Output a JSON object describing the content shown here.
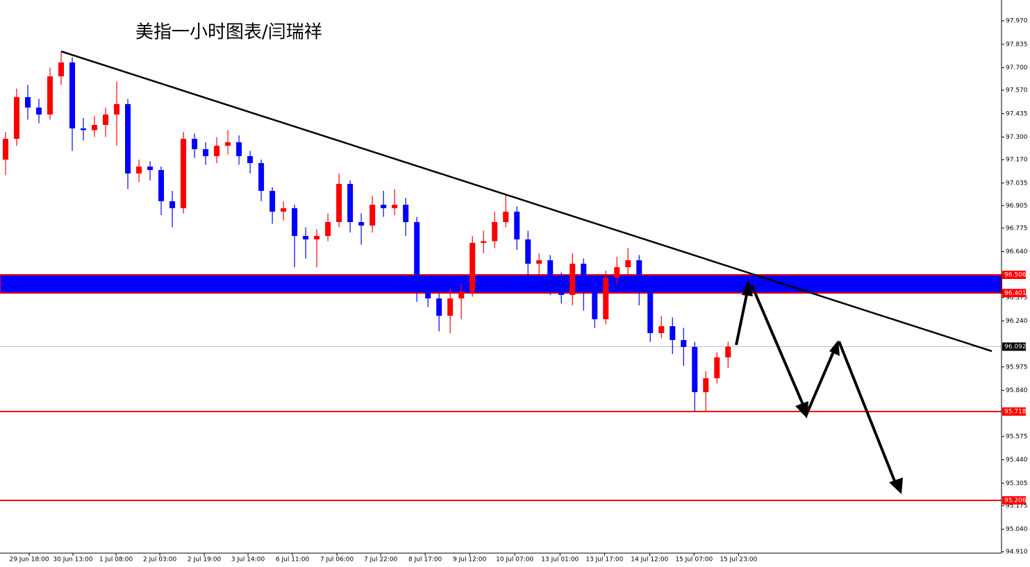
{
  "chart_data": {
    "type": "candlestick",
    "title": "美指一小时图表/闫瑞祥",
    "up_color": "#ff0000",
    "down_color": "#0000ff",
    "open": [
      97.17,
      97.29,
      97.53,
      97.47,
      97.43,
      97.65,
      97.73,
      97.35,
      97.34,
      97.37,
      97.43,
      97.49,
      97.09,
      97.13,
      97.11,
      96.93,
      96.89,
      97.29,
      97.23,
      97.19,
      97.25,
      97.27,
      97.19,
      97.15,
      96.99,
      96.87,
      96.89,
      96.73,
      96.71,
      96.73,
      96.81,
      97.03,
      96.81,
      96.79,
      96.91,
      96.89,
      96.91,
      96.81,
      96.41,
      96.37,
      96.27,
      96.37,
      96.41,
      96.69,
      96.7,
      96.81,
      96.87,
      96.71,
      96.57,
      96.59,
      96.49,
      96.39,
      96.57,
      96.41,
      96.25,
      96.49,
      96.55,
      96.59,
      96.41,
      96.17,
      96.21,
      96.13,
      96.09,
      95.83,
      95.91,
      96.03
    ],
    "high": [
      97.33,
      97.58,
      97.6,
      97.52,
      97.7,
      97.79,
      97.76,
      97.41,
      97.42,
      97.47,
      97.62,
      97.52,
      97.17,
      97.16,
      97.13,
      96.99,
      97.33,
      97.32,
      97.27,
      97.3,
      97.34,
      97.31,
      97.22,
      97.17,
      97.01,
      96.93,
      96.91,
      96.78,
      96.77,
      96.86,
      97.09,
      97.05,
      96.86,
      96.96,
      96.99,
      97.0,
      96.95,
      96.84,
      96.45,
      96.4,
      96.43,
      96.46,
      96.73,
      96.76,
      96.87,
      96.97,
      96.9,
      96.76,
      96.63,
      96.62,
      96.52,
      96.63,
      96.6,
      96.45,
      96.53,
      96.61,
      96.66,
      96.62,
      96.45,
      96.27,
      96.26,
      96.2,
      96.12,
      95.95,
      96.06,
      96.12
    ],
    "low": [
      97.08,
      97.25,
      97.4,
      97.38,
      97.4,
      97.6,
      97.22,
      97.28,
      97.3,
      97.3,
      97.25,
      97.0,
      97.04,
      97.05,
      96.85,
      96.78,
      96.86,
      97.18,
      97.14,
      97.15,
      97.2,
      97.14,
      97.09,
      96.93,
      96.8,
      96.82,
      96.55,
      96.6,
      96.55,
      96.7,
      96.78,
      96.75,
      96.68,
      96.75,
      96.84,
      96.85,
      96.73,
      96.35,
      96.32,
      96.18,
      96.17,
      96.25,
      96.38,
      96.63,
      96.66,
      96.78,
      96.65,
      96.5,
      96.51,
      96.39,
      96.34,
      96.33,
      96.3,
      96.2,
      96.22,
      96.45,
      96.5,
      96.33,
      96.12,
      96.14,
      96.05,
      95.98,
      95.72,
      95.72,
      95.88,
      95.97
    ],
    "close": [
      97.29,
      97.53,
      97.47,
      97.43,
      97.65,
      97.73,
      97.35,
      97.34,
      97.37,
      97.43,
      97.49,
      97.09,
      97.13,
      97.11,
      96.93,
      96.89,
      97.29,
      97.23,
      97.19,
      97.25,
      97.27,
      97.19,
      97.15,
      96.99,
      96.87,
      96.89,
      96.73,
      96.71,
      96.73,
      96.81,
      97.03,
      96.81,
      96.79,
      96.91,
      96.89,
      96.91,
      96.81,
      96.41,
      96.37,
      96.27,
      96.37,
      96.41,
      96.69,
      96.7,
      96.81,
      96.87,
      96.71,
      96.57,
      96.59,
      96.49,
      96.39,
      96.57,
      96.41,
      96.25,
      96.49,
      96.55,
      96.59,
      96.41,
      96.17,
      96.21,
      96.13,
      96.09,
      95.83,
      95.91,
      96.03,
      96.092
    ],
    "xlim": [
      -0.5,
      89.6
    ],
    "xticks": [
      {
        "value": 2.13,
        "label": "29 Jun 18:00"
      },
      {
        "value": 6.06,
        "label": "30 Jun 13:00"
      },
      {
        "value": 9.94,
        "label": "1 Jul 08:00"
      },
      {
        "value": 13.88,
        "label": "2 Jul 03:00"
      },
      {
        "value": 17.88,
        "label": "2 Jul 19:00"
      },
      {
        "value": 21.81,
        "label": "3 Jul 14:00"
      },
      {
        "value": 25.81,
        "label": "6 Jul 11:00"
      },
      {
        "value": 29.81,
        "label": "7 Jul 06:00"
      },
      {
        "value": 33.75,
        "label": "7 Jul 22:00"
      },
      {
        "value": 37.75,
        "label": "8 Jul 17:00"
      },
      {
        "value": 41.75,
        "label": "9 Jul 12:00"
      },
      {
        "value": 45.81,
        "label": "10 Jul 07:00"
      },
      {
        "value": 49.88,
        "label": "13 Jul 01:00"
      },
      {
        "value": 53.88,
        "label": "13 Jul 17:00"
      },
      {
        "value": 57.94,
        "label": "14 Jul 12:00"
      },
      {
        "value": 61.94,
        "label": "15 Jul 07:00"
      },
      {
        "value": 65.94,
        "label": "15 Jul 23:00"
      }
    ],
    "ylim": [
      94.902,
      98.09
    ],
    "yticks": [
      {
        "value": 97.97,
        "label": "97.970"
      },
      97.835,
      {
        "value": 97.7,
        "label": "97.700"
      },
      {
        "value": 97.57,
        "label": "97.570"
      },
      97.435,
      {
        "value": 97.3,
        "label": "97.300"
      },
      {
        "value": 97.17,
        "label": "97.170"
      },
      97.035,
      96.905,
      96.775,
      {
        "value": 96.64,
        "label": "96.640"
      },
      96.375,
      {
        "value": 96.24,
        "label": "96.240"
      },
      95.975,
      {
        "value": 95.84,
        "label": "95.840"
      },
      95.575,
      {
        "value": 95.44,
        "label": "95.440"
      },
      95.305,
      95.175,
      {
        "value": 95.04,
        "label": "95.040"
      },
      {
        "value": 94.91,
        "label": "94.910"
      }
    ],
    "price_labels": [
      96.506,
      96.401,
      96.092,
      95.718,
      95.206
    ],
    "zone_color": "#0000ff",
    "level_color": "#ff0000",
    "current_color": "#c0c0c0"
  }
}
